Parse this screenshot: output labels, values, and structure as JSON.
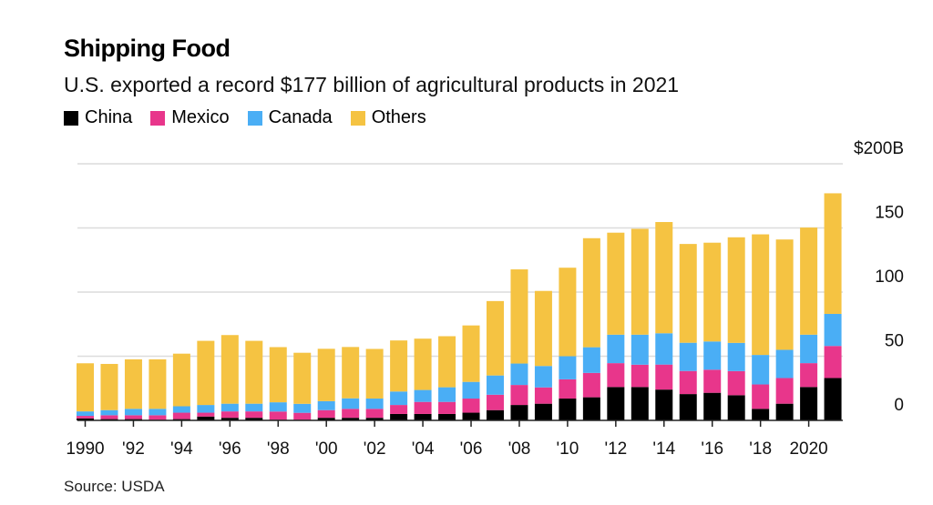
{
  "chart_data": {
    "type": "bar",
    "stacked": true,
    "title": "Shipping Food",
    "subtitle": "U.S. exported a record $177 billion of agricultural products in 2021",
    "source": "Source: USDA",
    "legend_position": "top-left",
    "grid": true,
    "ylim": [
      0,
      200
    ],
    "y_axis_side": "right",
    "y_ticks": [
      {
        "value": 0,
        "label": "0"
      },
      {
        "value": 50,
        "label": "50"
      },
      {
        "value": 100,
        "label": "100"
      },
      {
        "value": 150,
        "label": "150"
      },
      {
        "value": 200,
        "label": "$200B"
      }
    ],
    "categories": [
      1990,
      1991,
      1992,
      1993,
      1994,
      1995,
      1996,
      1997,
      1998,
      1999,
      2000,
      2001,
      2002,
      2003,
      2004,
      2005,
      2006,
      2007,
      2008,
      2009,
      2010,
      2011,
      2012,
      2013,
      2014,
      2015,
      2016,
      2017,
      2018,
      2019,
      2020,
      2021
    ],
    "x_tick_labels": {
      "1990": "1990",
      "1992": "'92",
      "1994": "'94",
      "1996": "'96",
      "1998": "'98",
      "2000": "'00",
      "2002": "'02",
      "2004": "'04",
      "2006": "'06",
      "2008": "'08",
      "2010": "'10",
      "2012": "'12",
      "2014": "'14",
      "2016": "'16",
      "2018": "'18",
      "2020": "2020"
    },
    "series": [
      {
        "name": "China",
        "color": "#000000",
        "values": [
          1.5,
          1,
          1,
          0.5,
          1,
          3,
          2,
          2,
          0.5,
          0.5,
          2,
          2,
          2,
          5,
          5,
          5,
          6,
          8,
          12,
          13,
          17,
          18,
          26,
          26,
          24,
          20.5,
          21.5,
          19.6,
          9,
          13,
          26,
          33
        ]
      },
      {
        "name": "Mexico",
        "color": "#e8368b",
        "values": [
          2,
          3,
          3,
          3.5,
          5,
          3,
          5,
          5,
          6.4,
          5.4,
          6,
          7,
          7,
          7,
          9.4,
          9.4,
          11,
          12,
          15.6,
          12.7,
          15,
          19,
          18.6,
          17.4,
          19.5,
          18,
          18,
          18.8,
          19,
          20,
          18.6,
          25
        ]
      },
      {
        "name": "Canada",
        "color": "#4aaef5",
        "values": [
          3.5,
          4,
          5,
          5,
          5,
          6,
          6,
          6,
          7.2,
          7,
          7,
          8.2,
          8,
          10.5,
          9.3,
          11.4,
          13,
          15,
          16.7,
          16.7,
          18,
          20,
          22.2,
          23.4,
          24.4,
          22,
          22,
          22,
          23,
          22,
          22.2,
          25
        ]
      },
      {
        "name": "Others",
        "color": "#f5c342",
        "values": [
          37.5,
          36,
          38.6,
          38.6,
          41,
          50,
          53.5,
          49,
          43,
          39.8,
          40.8,
          40,
          38.7,
          39.8,
          40,
          39.8,
          44,
          58,
          73.4,
          58.5,
          69,
          85,
          79.5,
          82.5,
          86.7,
          77,
          77,
          82.3,
          94,
          86,
          83.5,
          94
        ]
      }
    ]
  }
}
